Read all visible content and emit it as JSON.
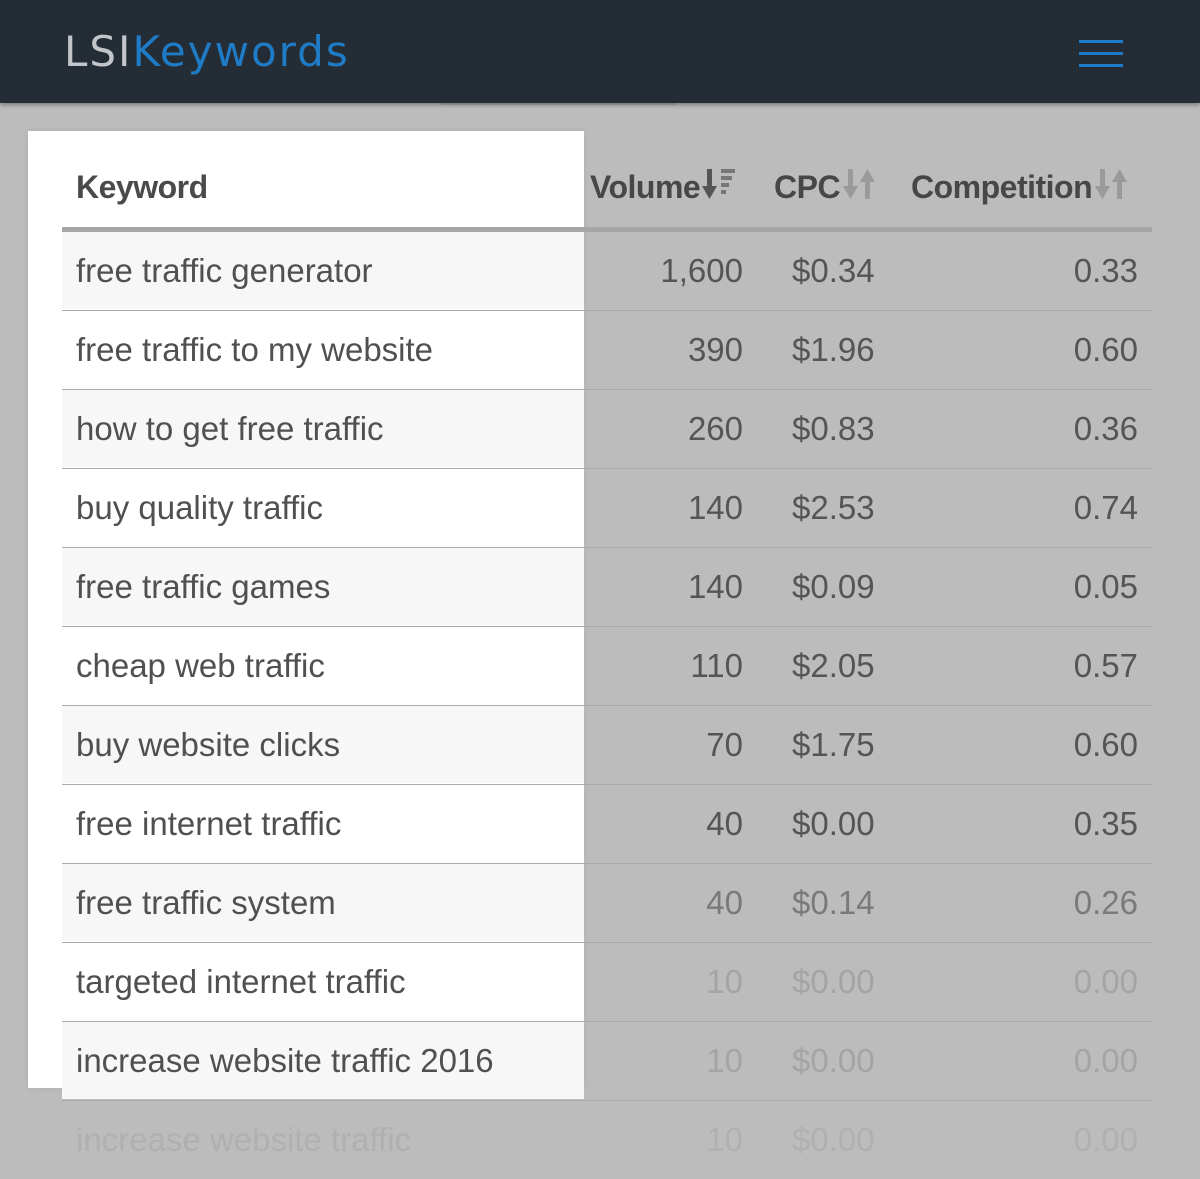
{
  "header": {
    "logo_lsi": "LSI",
    "logo_keywords": "Keywords",
    "menu_icon": "hamburger-menu-icon",
    "brand_color": "#1f7bc6",
    "background_color": "#242d35"
  },
  "table": {
    "columns": [
      {
        "label": "Keyword"
      },
      {
        "label": "Volume",
        "sort_icon": "sort-descending-icon"
      },
      {
        "label": "CPC",
        "sort_icon": "sort-icon"
      },
      {
        "label": "Competition",
        "sort_icon": "sort-icon"
      }
    ],
    "rows": [
      {
        "keyword": "free traffic generator",
        "volume": "1,600",
        "cpc": "$0.34",
        "competition": "0.33"
      },
      {
        "keyword": "free traffic to my website",
        "volume": "390",
        "cpc": "$1.96",
        "competition": "0.60"
      },
      {
        "keyword": "how to get free traffic",
        "volume": "260",
        "cpc": "$0.83",
        "competition": "0.36"
      },
      {
        "keyword": "buy quality traffic",
        "volume": "140",
        "cpc": "$2.53",
        "competition": "0.74"
      },
      {
        "keyword": "free traffic games",
        "volume": "140",
        "cpc": "$0.09",
        "competition": "0.05"
      },
      {
        "keyword": "cheap web traffic",
        "volume": "110",
        "cpc": "$2.05",
        "competition": "0.57"
      },
      {
        "keyword": "buy website clicks",
        "volume": "70",
        "cpc": "$1.75",
        "competition": "0.60"
      },
      {
        "keyword": "free internet traffic",
        "volume": "40",
        "cpc": "$0.00",
        "competition": "0.35"
      },
      {
        "keyword": "free traffic system",
        "volume": "40",
        "cpc": "$0.14",
        "competition": "0.26"
      },
      {
        "keyword": "targeted internet traffic",
        "volume": "10",
        "cpc": "$0.00",
        "competition": "0.00"
      },
      {
        "keyword": "increase website traffic 2016",
        "volume": "10",
        "cpc": "$0.00",
        "competition": "0.00"
      },
      {
        "keyword": "increase website traffic",
        "volume": "10",
        "cpc": "$0.00",
        "competition": "0.00"
      }
    ]
  }
}
